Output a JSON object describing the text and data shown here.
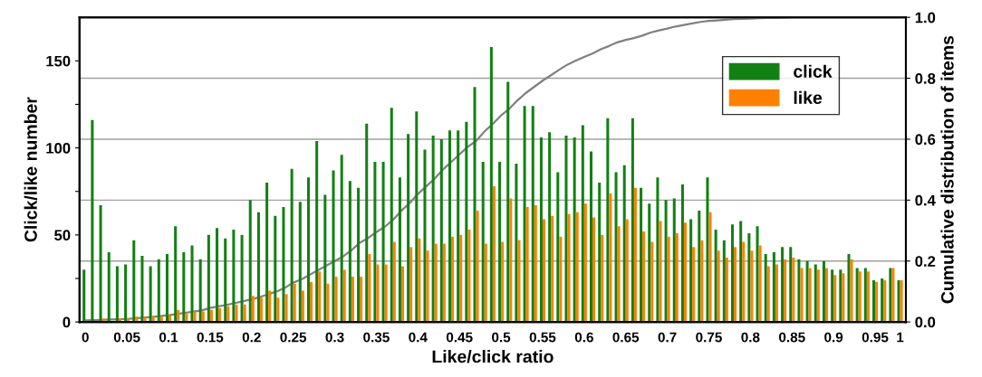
{
  "chart_data": {
    "type": "bar",
    "xlabel": "Like/click ratio",
    "ylabel": "Click/like number",
    "y2label": "Cumulative distribution of items",
    "categories": [
      "0",
      null,
      null,
      null,
      null,
      "0.05",
      null,
      null,
      null,
      null,
      "0.1",
      null,
      null,
      null,
      null,
      "0.15",
      null,
      null,
      null,
      null,
      "0.2",
      null,
      null,
      null,
      null,
      "0.25",
      null,
      null,
      null,
      null,
      "0.3",
      null,
      null,
      null,
      null,
      "0.35",
      null,
      null,
      null,
      null,
      "0.4",
      null,
      null,
      null,
      null,
      "0.45",
      null,
      null,
      null,
      null,
      "0.5",
      null,
      null,
      null,
      null,
      "0.55",
      null,
      null,
      null,
      null,
      "0.6",
      null,
      null,
      null,
      null,
      "0.65",
      null,
      null,
      null,
      null,
      "0.7",
      null,
      null,
      null,
      null,
      "0.75",
      null,
      null,
      null,
      null,
      "0.8",
      null,
      null,
      null,
      null,
      "0.85",
      null,
      null,
      null,
      null,
      "0.9",
      null,
      null,
      null,
      null,
      "0.95",
      null,
      null,
      "1"
    ],
    "series": [
      {
        "name": "click",
        "color": "#138013",
        "values": [
          30,
          116,
          67,
          40,
          32,
          33,
          47,
          38,
          32,
          36,
          39,
          55,
          40,
          44,
          36,
          50,
          54,
          48,
          53,
          50,
          70,
          63,
          80,
          61,
          66,
          88,
          69,
          83,
          104,
          73,
          87,
          96,
          81,
          77,
          114,
          92,
          92,
          123,
          83,
          108,
          121,
          99,
          107,
          105,
          110,
          110,
          115,
          135,
          92,
          158,
          92,
          138,
          91,
          124,
          124,
          106,
          109,
          86,
          107,
          106,
          113,
          98,
          80,
          117,
          86,
          90,
          117,
          77,
          68,
          83,
          70,
          71,
          79,
          59,
          64,
          83,
          53,
          47,
          56,
          58,
          51,
          55,
          39,
          40,
          43,
          43,
          36,
          35,
          33,
          35,
          30,
          30,
          39,
          31,
          31,
          24,
          25,
          31,
          24
        ]
      },
      {
        "name": "like",
        "color": "#ff8000",
        "values": [
          null,
          null,
          2,
          null,
          2,
          2,
          3,
          3,
          3,
          3,
          4,
          7,
          5,
          6,
          6,
          7,
          8,
          9,
          10,
          10,
          15,
          14,
          18,
          14,
          16,
          22,
          18,
          23,
          29,
          22,
          26,
          30,
          26,
          26,
          39,
          33,
          33,
          46,
          32,
          43,
          48,
          41,
          45,
          45,
          49,
          50,
          53,
          64,
          45,
          78,
          46,
          71,
          47,
          66,
          67,
          59,
          61,
          49,
          62,
          63,
          68,
          60,
          50,
          74,
          55,
          59,
          77,
          52,
          46,
          58,
          49,
          51,
          57,
          43,
          47,
          63,
          41,
          37,
          43,
          46,
          41,
          44,
          32,
          33,
          36,
          37,
          31,
          31,
          30,
          31,
          27,
          28,
          36,
          29,
          29,
          23,
          24,
          31,
          24
        ]
      },
      {
        "type": "line",
        "axis": "y2",
        "color": "#808080",
        "values": [
          0.005,
          0.006,
          0.007,
          0.008,
          0.009,
          0.01,
          0.012,
          0.014,
          0.016,
          0.019,
          0.022,
          0.026,
          0.03,
          0.034,
          0.038,
          0.046,
          0.051,
          0.056,
          0.062,
          0.068,
          0.074,
          0.082,
          0.091,
          0.1,
          0.112,
          0.129,
          0.14,
          0.155,
          0.17,
          0.185,
          0.2,
          0.215,
          0.235,
          0.26,
          0.275,
          0.295,
          0.312,
          0.335,
          0.365,
          0.39,
          0.42,
          0.445,
          0.47,
          0.5,
          0.525,
          0.55,
          0.575,
          0.594,
          0.625,
          0.65,
          0.678,
          0.7,
          0.728,
          0.752,
          0.772,
          0.792,
          0.81,
          0.828,
          0.845,
          0.858,
          0.87,
          0.881,
          0.895,
          0.906,
          0.918,
          0.926,
          0.932,
          0.94,
          0.95,
          0.957,
          0.963,
          0.97,
          0.975,
          0.98,
          0.985,
          0.988,
          0.99,
          0.992,
          0.994,
          0.995,
          0.996,
          0.997,
          0.998,
          0.998,
          0.999,
          1,
          1,
          1,
          1,
          1,
          1,
          1,
          1,
          1,
          1,
          1,
          1,
          1,
          1
        ]
      }
    ],
    "ylim": [
      0,
      175
    ],
    "yticks": [
      0,
      {
        "value": 25,
        "label": null
      },
      50,
      {
        "value": 75,
        "label": null
      },
      100,
      {
        "value": 125,
        "label": null
      },
      150
    ],
    "y2lim": [
      0,
      1
    ],
    "y2ticks": [
      {
        "value": 0,
        "label": "0.0"
      },
      0.2,
      0.4,
      0.6,
      0.8,
      {
        "value": 1,
        "label": "1.0"
      }
    ],
    "grid": "y2",
    "legend": "top right"
  }
}
